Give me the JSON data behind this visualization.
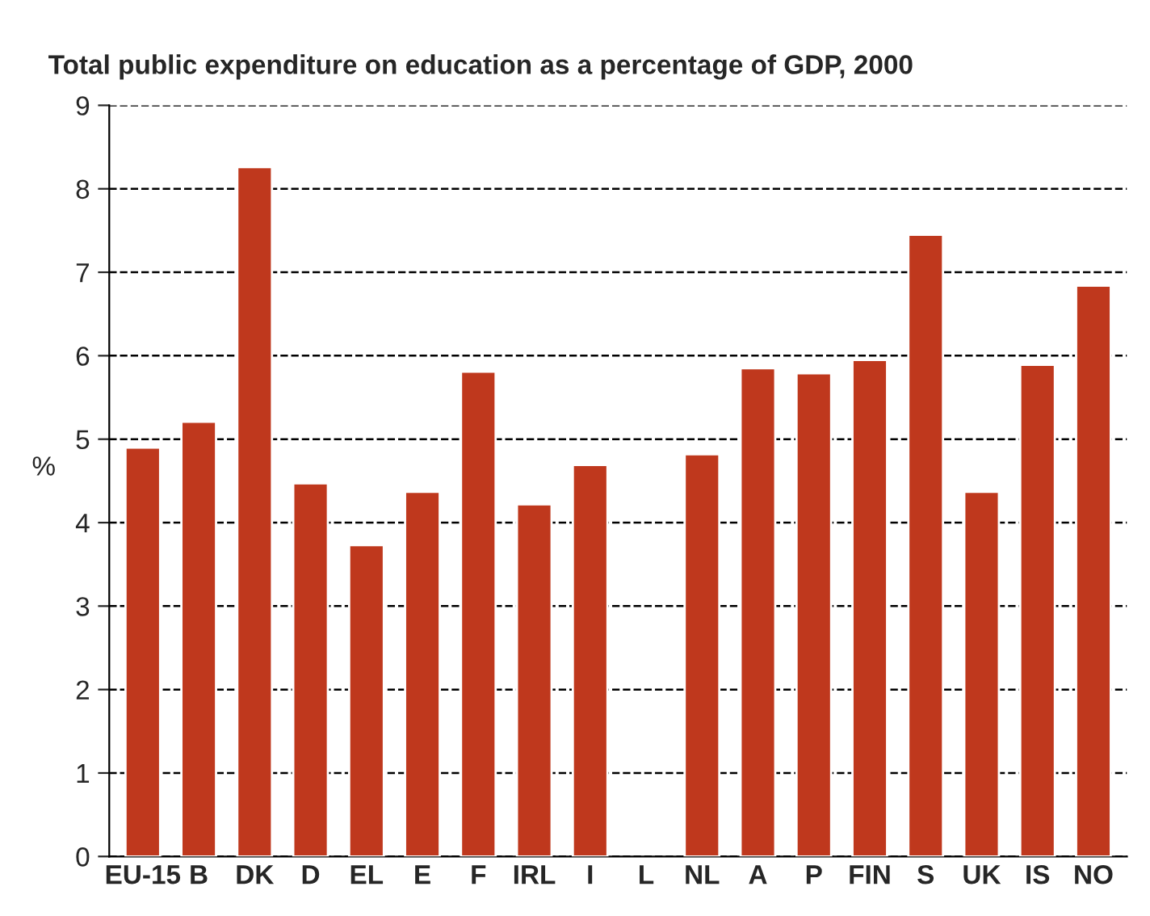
{
  "chart_data": {
    "type": "bar",
    "title": "Total public expenditure on education as a percentage of GDP, 2000",
    "ylabel": "%",
    "categories": [
      "EU-15",
      "B",
      "DK",
      "D",
      "EL",
      "E",
      "F",
      "IRL",
      "I",
      "L",
      "NL",
      "A",
      "P",
      "FIN",
      "S",
      "UK",
      "IS",
      "NO"
    ],
    "values": [
      4.9,
      5.21,
      8.26,
      4.47,
      3.73,
      4.37,
      5.81,
      4.22,
      4.69,
      null,
      4.82,
      5.85,
      5.79,
      5.95,
      7.45,
      4.37,
      5.89,
      6.84
    ],
    "color": "#bf381d",
    "ylim": [
      0,
      9
    ],
    "yticks": [
      0,
      1,
      2,
      3,
      4,
      5,
      6,
      7,
      8,
      9
    ],
    "grid": "y",
    "line_style": "dashed"
  }
}
